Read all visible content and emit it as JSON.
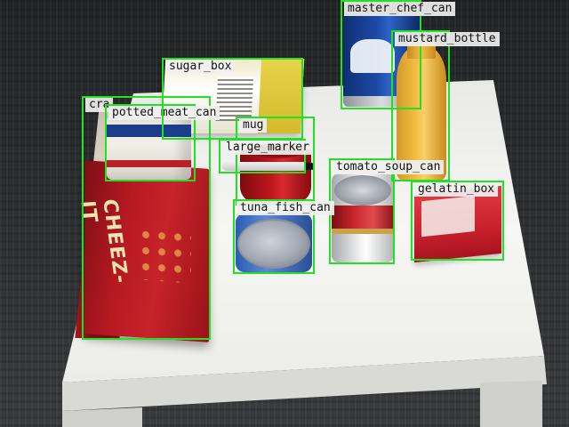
{
  "detections": [
    {
      "id": "cracker_box",
      "label": "cra"
    },
    {
      "id": "potted_meat_can",
      "label": "potted_meat_can"
    },
    {
      "id": "sugar_box",
      "label": "sugar_box"
    },
    {
      "id": "master_chef_can",
      "label": "master_chef_can"
    },
    {
      "id": "mustard_bottle",
      "label": "mustard_bottle"
    },
    {
      "id": "mug",
      "label": "mug"
    },
    {
      "id": "large_marker",
      "label": "large_marker"
    },
    {
      "id": "tomato_soup_can",
      "label": "tomato_soup_can"
    },
    {
      "id": "tuna_fish_can",
      "label": "tuna_fish_can"
    },
    {
      "id": "gelatin_box",
      "label": "gelatin_box"
    }
  ],
  "colors": {
    "box_stroke": "#22e022",
    "label_background": "#f0f0f0",
    "label_text": "#111111",
    "table": "#f4f4f2",
    "carpet": "#2f3032"
  }
}
